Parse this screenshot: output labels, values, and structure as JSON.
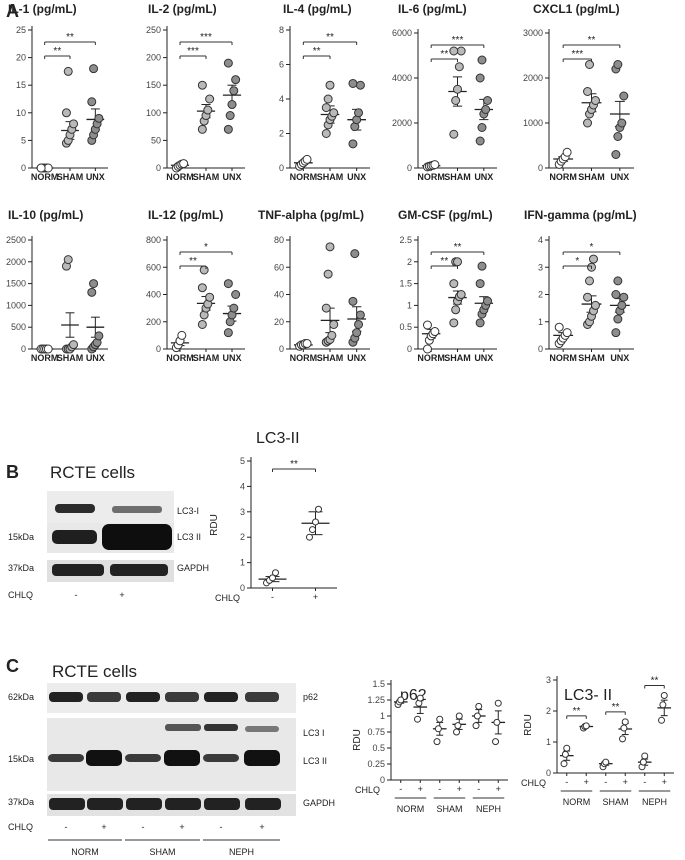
{
  "panel_letters": [
    "A",
    "B",
    "C"
  ],
  "chart_data": [
    {
      "id": "il1",
      "type": "scatter",
      "title": "IL-1 (pg/mL)",
      "categories": [
        "NORM",
        "SHAM",
        "UNX"
      ],
      "ylim": [
        0,
        25
      ],
      "yticks": [
        0,
        5,
        10,
        15,
        20,
        25
      ],
      "points": [
        [
          0,
          0,
          0,
          0,
          0,
          0
        ],
        [
          4.5,
          5,
          6,
          7,
          8,
          10,
          17.5
        ],
        [
          5,
          6,
          7,
          8,
          9,
          12,
          18
        ]
      ],
      "means": [
        0,
        6.8,
        8.8
      ],
      "sems": [
        0,
        1.6,
        1.9
      ],
      "sig": [
        {
          "from": 0,
          "to": 1,
          "label": "**"
        },
        {
          "from": 0,
          "to": 2,
          "label": "**"
        }
      ]
    },
    {
      "id": "il2",
      "type": "scatter",
      "title": "IL-2 (pg/mL)",
      "categories": [
        "NORM",
        "SHAM",
        "UNX"
      ],
      "ylim": [
        0,
        250
      ],
      "yticks": [
        0,
        50,
        100,
        150,
        200,
        250
      ],
      "points": [
        [
          0,
          3,
          5,
          7,
          8
        ],
        [
          70,
          85,
          95,
          105,
          125,
          150
        ],
        [
          70,
          95,
          115,
          140,
          160,
          190
        ]
      ],
      "means": [
        5,
        103,
        132
      ],
      "sems": [
        2,
        12,
        18
      ],
      "sig": [
        {
          "from": 0,
          "to": 1,
          "label": "***"
        },
        {
          "from": 0,
          "to": 2,
          "label": "***"
        }
      ]
    },
    {
      "id": "il4",
      "type": "scatter",
      "title": "IL-4 (pg/mL)",
      "categories": [
        "NORM",
        "SHAM",
        "UNX"
      ],
      "ylim": [
        0,
        8
      ],
      "yticks": [
        0,
        2,
        4,
        6,
        8
      ],
      "points": [
        [
          0.1,
          0.2,
          0.3,
          0.4,
          0.5
        ],
        [
          2,
          2.5,
          2.8,
          3,
          3.2,
          3.5,
          4,
          4.8
        ],
        [
          1.4,
          2.4,
          2.8,
          3.2,
          4.8,
          4.9
        ]
      ],
      "means": [
        0.3,
        3.1,
        2.8
      ],
      "sems": [
        0.1,
        0.5,
        0.6
      ],
      "sig": [
        {
          "from": 0,
          "to": 1,
          "label": "**"
        },
        {
          "from": 0,
          "to": 2,
          "label": "**"
        }
      ]
    },
    {
      "id": "il6",
      "type": "scatter",
      "title": "IL-6 (pg/mL)",
      "categories": [
        "NORM",
        "SHAM",
        "UNX"
      ],
      "ylim": [
        0,
        6000
      ],
      "yticks": [
        0,
        2000,
        4000,
        6000
      ],
      "points": [
        [
          50,
          80,
          100,
          120,
          150
        ],
        [
          1500,
          3000,
          3500,
          4500,
          5200,
          5200
        ],
        [
          1200,
          1800,
          2400,
          2600,
          3000,
          4000,
          4800
        ]
      ],
      "means": [
        100,
        3400,
        2600
      ],
      "sems": [
        20,
        650,
        450
      ],
      "sig": [
        {
          "from": 0,
          "to": 1,
          "label": "**"
        },
        {
          "from": 0,
          "to": 2,
          "label": "***"
        }
      ]
    },
    {
      "id": "cxcl1",
      "type": "scatter",
      "title": "CXCL1 (pg/mL)",
      "categories": [
        "NORM",
        "SHAM",
        "UNX"
      ],
      "ylim": [
        0,
        3000
      ],
      "yticks": [
        0,
        1000,
        2000,
        3000
      ],
      "points": [
        [
          80,
          150,
          200,
          250,
          350
        ],
        [
          1000,
          1200,
          1300,
          1400,
          1500,
          1700,
          2300
        ],
        [
          300,
          700,
          900,
          1000,
          1600,
          2200,
          2300
        ]
      ],
      "means": [
        200,
        1450,
        1200
      ],
      "sems": [
        50,
        200,
        280
      ],
      "sig": [
        {
          "from": 0,
          "to": 1,
          "label": "***"
        },
        {
          "from": 0,
          "to": 2,
          "label": "**"
        }
      ]
    },
    {
      "id": "il10",
      "type": "scatter",
      "title": "IL-10 (pg/mL)",
      "categories": [
        "NORM",
        "SHAM",
        "UNX"
      ],
      "ylim": [
        0,
        2500
      ],
      "yticks": [
        0,
        500,
        1000,
        1500,
        2000,
        2500
      ],
      "points": [
        [
          0,
          0,
          0,
          0,
          0
        ],
        [
          0,
          0,
          0,
          50,
          100,
          1900,
          2050
        ],
        [
          0,
          50,
          100,
          150,
          300,
          1300,
          1500
        ]
      ],
      "means": [
        0,
        550,
        500
      ],
      "sems": [
        0,
        280,
        230
      ],
      "sig": []
    },
    {
      "id": "il12",
      "type": "scatter",
      "title": "IL-12 (pg/mL)",
      "categories": [
        "NORM",
        "SHAM",
        "UNX"
      ],
      "ylim": [
        0,
        800
      ],
      "yticks": [
        0,
        200,
        400,
        600,
        800
      ],
      "points": [
        [
          10,
          30,
          60,
          100
        ],
        [
          180,
          250,
          300,
          330,
          380,
          450,
          580
        ],
        [
          120,
          200,
          250,
          300,
          400,
          480
        ]
      ],
      "means": [
        45,
        335,
        260
      ],
      "sems": [
        20,
        50,
        55
      ],
      "sig": [
        {
          "from": 0,
          "to": 1,
          "label": "**"
        },
        {
          "from": 0,
          "to": 2,
          "label": "*"
        }
      ]
    },
    {
      "id": "tnf",
      "type": "scatter",
      "title": "TNF-alpha (pg/mL)",
      "categories": [
        "NORM",
        "SHAM",
        "UNX"
      ],
      "ylim": [
        0,
        80
      ],
      "yticks": [
        0,
        20,
        40,
        60,
        80
      ],
      "points": [
        [
          2,
          3,
          3,
          4,
          4
        ],
        [
          5,
          6,
          7,
          10,
          18,
          30,
          55,
          75
        ],
        [
          5,
          8,
          12,
          18,
          25,
          35,
          70
        ]
      ],
      "means": [
        3,
        21,
        22
      ],
      "sems": [
        1,
        9,
        9
      ],
      "sig": []
    },
    {
      "id": "gmcsf",
      "type": "scatter",
      "title": "GM-CSF (pg/mL)",
      "categories": [
        "NORM",
        "SHAM",
        "UNX"
      ],
      "ylim": [
        0,
        2.5
      ],
      "yticks": [
        0,
        0.5,
        1.0,
        1.5,
        2.0,
        2.5
      ],
      "points": [
        [
          0,
          0.2,
          0.3,
          0.35,
          0.4,
          0.55
        ],
        [
          0.6,
          0.9,
          1.1,
          1.2,
          1.25,
          1.5,
          2.0,
          2.0
        ],
        [
          0.6,
          0.8,
          0.9,
          1.0,
          1.1,
          1.5,
          1.9
        ]
      ],
      "means": [
        0.35,
        1.18,
        1.05
      ],
      "sems": [
        0.1,
        0.15,
        0.15
      ],
      "sig": [
        {
          "from": 0,
          "to": 1,
          "label": "**"
        },
        {
          "from": 0,
          "to": 2,
          "label": "**"
        }
      ]
    },
    {
      "id": "ifng",
      "type": "scatter",
      "title": "IFN-gamma (pg/mL)",
      "categories": [
        "NORM",
        "SHAM",
        "UNX"
      ],
      "ylim": [
        0,
        4
      ],
      "yticks": [
        0,
        1,
        2,
        3,
        4
      ],
      "points": [
        [
          0.2,
          0.3,
          0.4,
          0.5,
          0.6,
          0.8
        ],
        [
          0.9,
          1.0,
          1.2,
          1.4,
          1.6,
          1.9,
          2.5,
          3.0,
          3.3
        ],
        [
          0.6,
          1.1,
          1.4,
          1.6,
          1.9,
          2.0,
          2.5
        ]
      ],
      "means": [
        0.5,
        1.65,
        1.6
      ],
      "sems": [
        0.1,
        0.3,
        0.25
      ],
      "sig": [
        {
          "from": 0,
          "to": 1,
          "label": "*"
        },
        {
          "from": 0,
          "to": 2,
          "label": "*"
        }
      ]
    },
    {
      "id": "b_lc3",
      "type": "scatter",
      "title": "LC3-II",
      "ylabel": "RDU",
      "categories": [
        "-",
        "+"
      ],
      "xprefix": "CHLQ",
      "ylim": [
        0,
        5
      ],
      "yticks": [
        0,
        1,
        2,
        3,
        4,
        5
      ],
      "points": [
        [
          0.2,
          0.3,
          0.4,
          0.6
        ],
        [
          2.0,
          2.3,
          2.6,
          3.1
        ]
      ],
      "means": [
        0.35,
        2.55
      ],
      "sems": [
        0.1,
        0.45
      ],
      "sig": [
        {
          "from": 0,
          "to": 1,
          "label": "**"
        }
      ]
    },
    {
      "id": "c_p62",
      "type": "scatter",
      "title": "p62",
      "ylabel": "RDU",
      "categories": [
        "-",
        "+",
        "-",
        "+",
        "-",
        "+"
      ],
      "groups": [
        "NORM",
        "SHAM",
        "NEPH"
      ],
      "xprefix": "CHLQ",
      "ylim": [
        0,
        1.5
      ],
      "yticks": [
        0,
        0.25,
        0.5,
        0.75,
        1.0,
        1.25,
        1.5
      ],
      "points": [
        [
          1.18,
          1.22,
          1.25
        ],
        [
          0.95,
          1.2,
          1.28
        ],
        [
          0.6,
          0.8,
          0.95
        ],
        [
          0.75,
          0.85,
          1.0
        ],
        [
          0.85,
          1.0,
          1.15
        ],
        [
          0.6,
          0.9,
          1.2
        ]
      ],
      "means": [
        1.22,
        1.14,
        0.8,
        0.87,
        1.0,
        0.9
      ],
      "sems": [
        0.02,
        0.1,
        0.1,
        0.08,
        0.1,
        0.18
      ],
      "sig": []
    },
    {
      "id": "c_lc3",
      "type": "scatter",
      "title": "LC3- II",
      "ylabel": "RDU",
      "categories": [
        "-",
        "+",
        "-",
        "+",
        "-",
        "+"
      ],
      "groups": [
        "NORM",
        "SHAM",
        "NEPH"
      ],
      "xprefix": "CHLQ",
      "ylim": [
        0,
        3
      ],
      "yticks": [
        0,
        1,
        2,
        3
      ],
      "points": [
        [
          0.3,
          0.6,
          0.8
        ],
        [
          1.45,
          1.5,
          1.52
        ],
        [
          0.2,
          0.3,
          0.35
        ],
        [
          1.1,
          1.45,
          1.65
        ],
        [
          0.2,
          0.35,
          0.55
        ],
        [
          1.7,
          2.2,
          2.5
        ]
      ],
      "means": [
        0.56,
        1.5,
        0.3,
        1.42,
        0.35,
        2.1
      ],
      "sems": [
        0.15,
        0.02,
        0.05,
        0.18,
        0.1,
        0.25
      ],
      "sig": [
        {
          "from": 0,
          "to": 1,
          "label": "**"
        },
        {
          "from": 2,
          "to": 3,
          "label": "**"
        },
        {
          "from": 4,
          "to": 5,
          "label": "**"
        }
      ]
    }
  ],
  "blot_b": {
    "title": "RCTE cells",
    "markers": [
      "15kDa",
      "37kDa"
    ],
    "bands": [
      "LC3-I",
      "LC3 II",
      "GAPDH"
    ],
    "treat_label": "CHLQ",
    "lanes": [
      "-",
      "+"
    ]
  },
  "blot_c": {
    "title": "RCTE cells",
    "markers": [
      "62kDa",
      "15kDa",
      "37kDa"
    ],
    "bands": [
      "p62",
      "LC3 I",
      "LC3 II",
      "GAPDH"
    ],
    "treat_label": "CHLQ",
    "lanes": [
      "-",
      "+",
      "-",
      "+",
      "-",
      "+"
    ],
    "groups": [
      "NORM",
      "SHAM",
      "NEPH"
    ]
  }
}
